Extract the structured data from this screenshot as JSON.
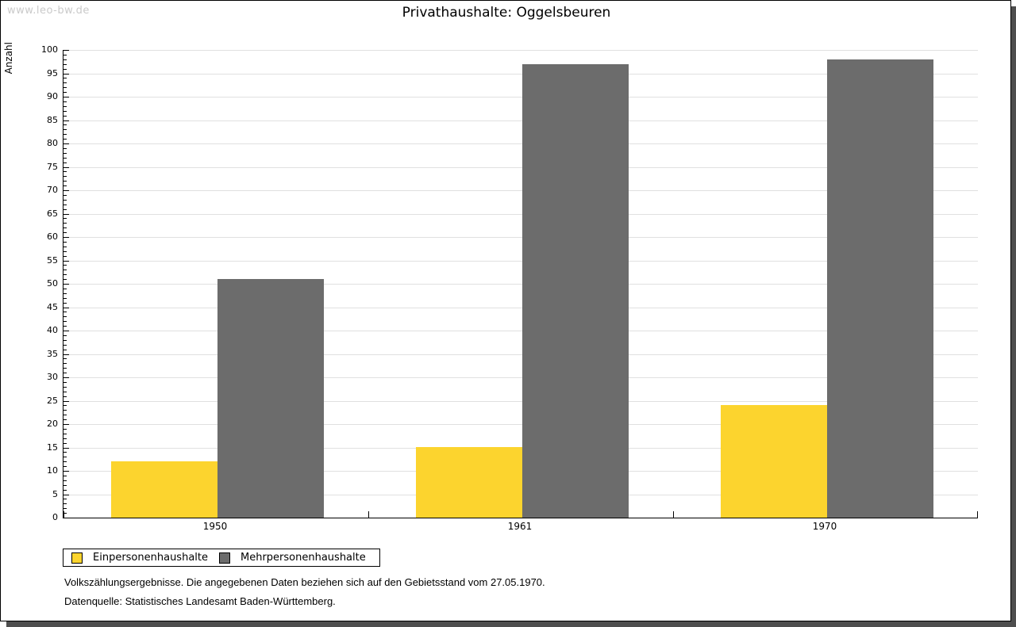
{
  "watermark": "www.leo-bw.de",
  "title": "Privathaushalte: Oggelsbeuren",
  "chart_data": {
    "type": "bar",
    "title": "Privathaushalte: Oggelsbeuren",
    "categories": [
      "1950",
      "1961",
      "1970"
    ],
    "series": [
      {
        "name": "Einpersonenhaushalte",
        "color": "#fcd42e",
        "values": [
          12,
          15,
          24
        ]
      },
      {
        "name": "Mehrpersonenhaushalte",
        "color": "#6c6c6c",
        "values": [
          51,
          97,
          98
        ]
      }
    ],
    "xlabel": "",
    "ylabel": "Anzahl",
    "ylim": [
      0,
      100
    ],
    "y_major_step": 5,
    "y_minor_step": 1,
    "grid": true,
    "legend_position": "bottom-left"
  },
  "footer": {
    "note": "Volkszählungsergebnisse. Die angegebenen Daten beziehen sich auf den Gebietsstand vom 27.05.1970.",
    "source": "Datenquelle: Statistisches Landesamt Baden-Württemberg."
  },
  "colors": {
    "series_1": "#fcd42e",
    "series_2": "#6c6c6c",
    "gridline": "#e0e0e0",
    "axis": "#000000",
    "watermark": "#cacaca",
    "frame_shadow": "#4e4e4e",
    "background": "#ffffff"
  }
}
